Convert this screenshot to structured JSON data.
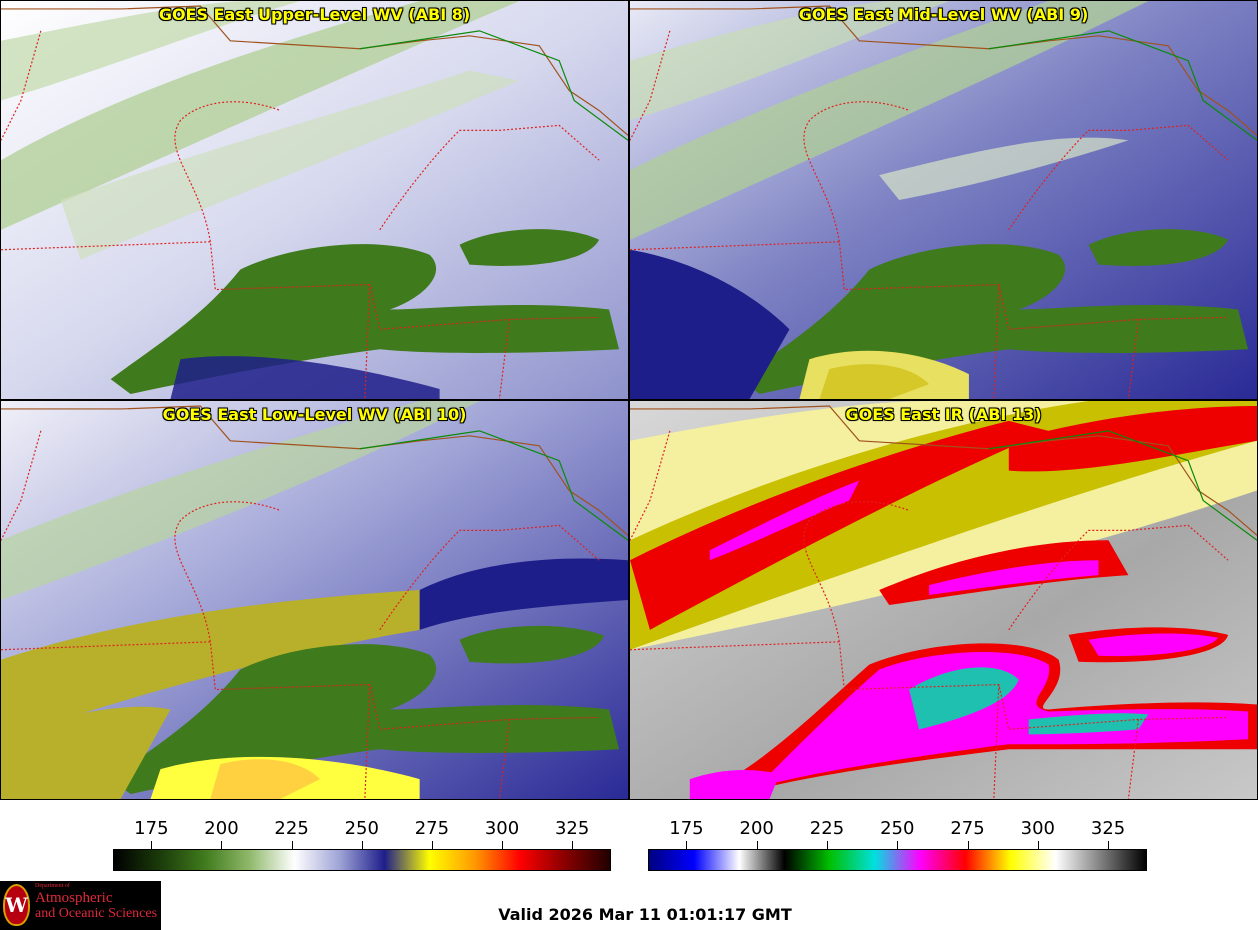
{
  "panels": [
    {
      "title": "GOES East Upper-Level WV (ABI 8)"
    },
    {
      "title": "GOES East Mid-Level WV (ABI 9)"
    },
    {
      "title": "GOES East Low-Level WV (ABI 10)"
    },
    {
      "title": "GOES East IR (ABI 13)"
    }
  ],
  "colorbars": {
    "wv": {
      "ticks": [
        "175",
        "200",
        "225",
        "250",
        "275",
        "300",
        "325"
      ],
      "colors": [
        "#000000",
        "#1a3a0a",
        "#3f7a1c",
        "#8fb86a",
        "#ffffff",
        "#9fa4d6",
        "#1e1e8a",
        "#ffff00",
        "#ff9900",
        "#ff0000",
        "#8a0000",
        "#200000"
      ]
    },
    "ir": {
      "ticks": [
        "175",
        "200",
        "225",
        "250",
        "275",
        "300",
        "325"
      ],
      "colors": [
        "#000080",
        "#0000ff",
        "#ffffff",
        "#000000",
        "#00c000",
        "#00e0e0",
        "#ff00ff",
        "#ff0000",
        "#ffff00",
        "#ffffff",
        "#808080",
        "#000000"
      ]
    }
  },
  "valid_time": "Valid 2026 Mar 11 01:01:17 GMT",
  "logo": {
    "department": "Department of",
    "line1": "Atmospheric",
    "line2": "and Oceanic Sciences",
    "seal_letter": "W"
  }
}
